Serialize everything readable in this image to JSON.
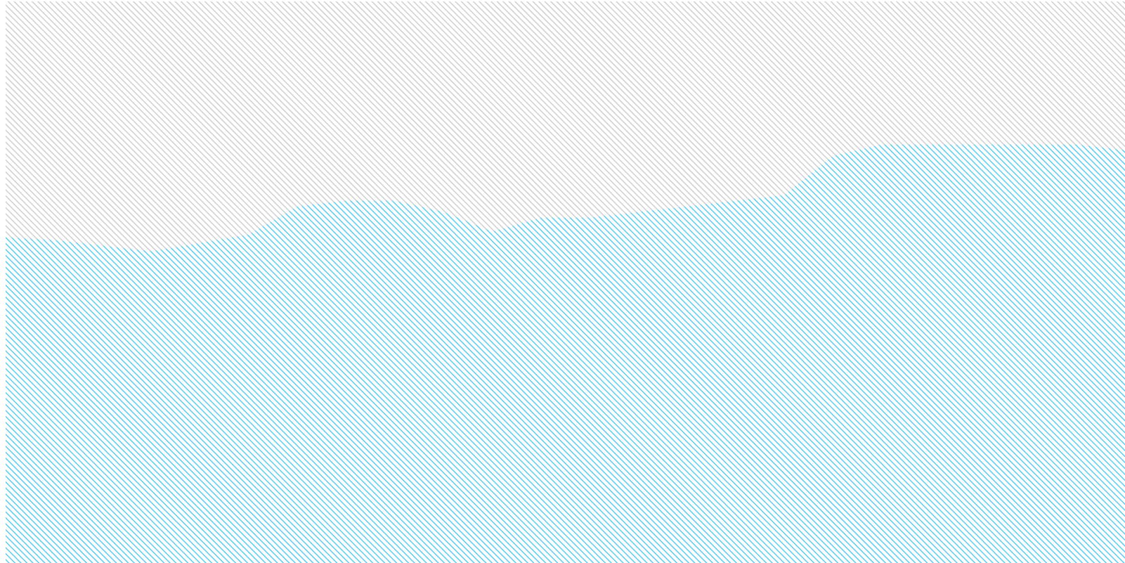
{
  "colors": {
    "background_hatch": "#cfcfcf",
    "series_hatch": "#5ccdf0",
    "page_background": "#ffffff"
  },
  "chart_data": {
    "type": "area",
    "title": "",
    "xlabel": "",
    "ylabel": "",
    "x": [
      0,
      1,
      2,
      3,
      4,
      5,
      6,
      7,
      8,
      9,
      10,
      11,
      12,
      13,
      14,
      15,
      16,
      17,
      18,
      19,
      20,
      21,
      22,
      23
    ],
    "ylim": [
      0,
      100
    ],
    "xlim": [
      0,
      23
    ],
    "grid": false,
    "legend": "none",
    "series": [
      {
        "name": "",
        "values": [
          58,
          57.5,
          56.5,
          55.5,
          57,
          58.5,
          63.5,
          64.5,
          64.5,
          62.5,
          59,
          61.5,
          61.5,
          62.5,
          63.5,
          64.5,
          65.5,
          72.5,
          74.5,
          74.5,
          74.5,
          74.5,
          74.5,
          73.5
        ]
      }
    ]
  }
}
